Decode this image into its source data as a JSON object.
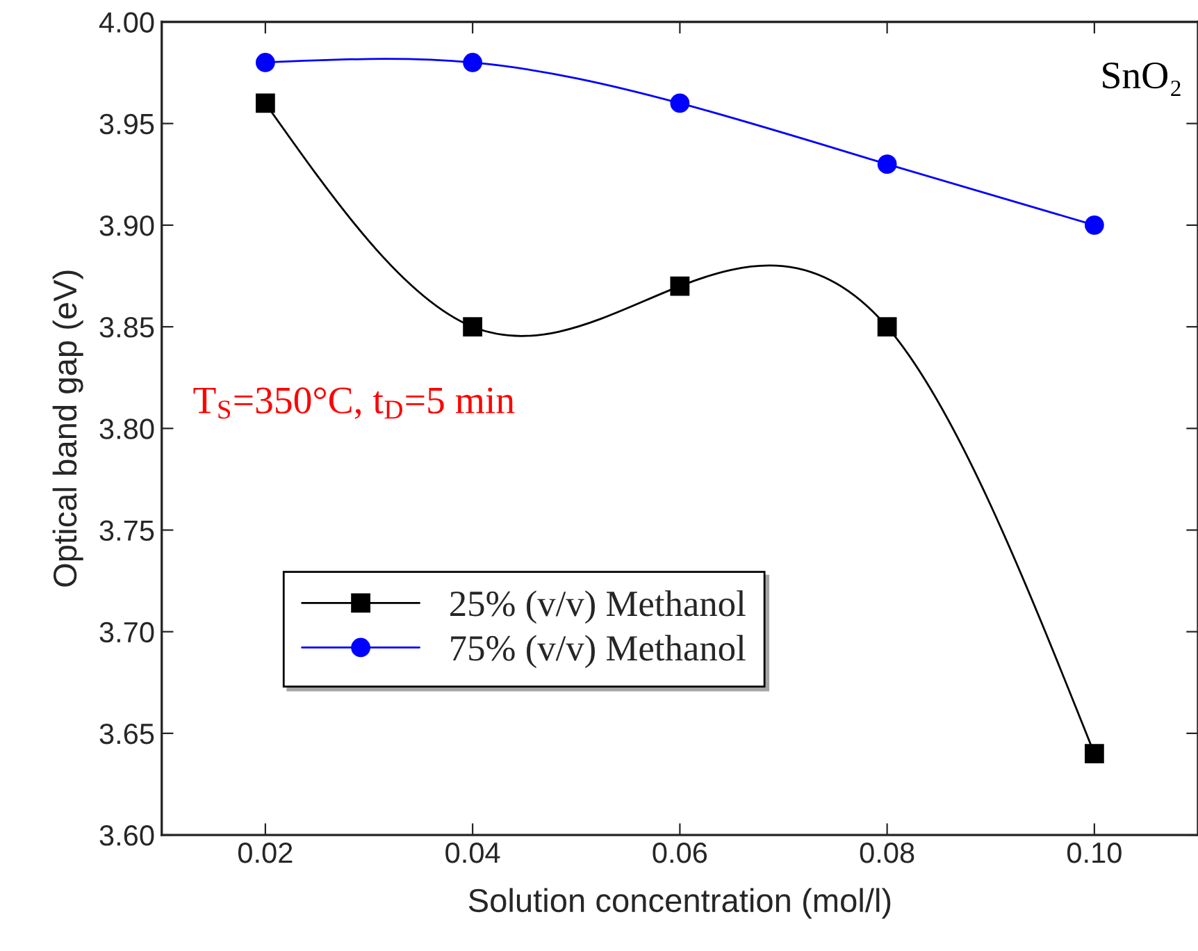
{
  "chart_data": {
    "type": "line",
    "xlabel": "Solution concentration (mol/l)",
    "ylabel": "Optical band gap (eV)",
    "x": [
      0.02,
      0.04,
      0.06,
      0.08,
      0.1
    ],
    "series": [
      {
        "name": "25% (v/v) Methanol",
        "color": "#000000",
        "marker": "square",
        "values": [
          3.96,
          3.85,
          3.87,
          3.85,
          3.64
        ]
      },
      {
        "name": "75% (v/v) Methanol",
        "color": "#0000ff",
        "marker": "circle",
        "values": [
          3.98,
          3.98,
          3.96,
          3.93,
          3.9
        ]
      }
    ],
    "xlim": [
      0.01,
      0.11
    ],
    "xticks": [
      0.02,
      0.04,
      0.06,
      {
        "value": 0.08,
        "label": "0.08"
      },
      {
        "value": 0.1,
        "label": "0.10"
      }
    ],
    "ylim": [
      3.6,
      4.0
    ],
    "yticks": [
      {
        "value": 3.6,
        "label": "3.60"
      },
      3.65,
      {
        "value": 3.7,
        "label": "3.70"
      },
      3.75,
      {
        "value": 3.8,
        "label": "3.80"
      },
      3.85,
      {
        "value": 3.9,
        "label": "3.90"
      },
      3.95,
      {
        "value": 4.0,
        "label": "4.00"
      }
    ],
    "annotations": [
      "SnO₂",
      "T$_{S}$=350°C, t$_{D}$=5 min"
    ],
    "legend": "bottom left",
    "grid": false,
    "line_style": "solid"
  }
}
